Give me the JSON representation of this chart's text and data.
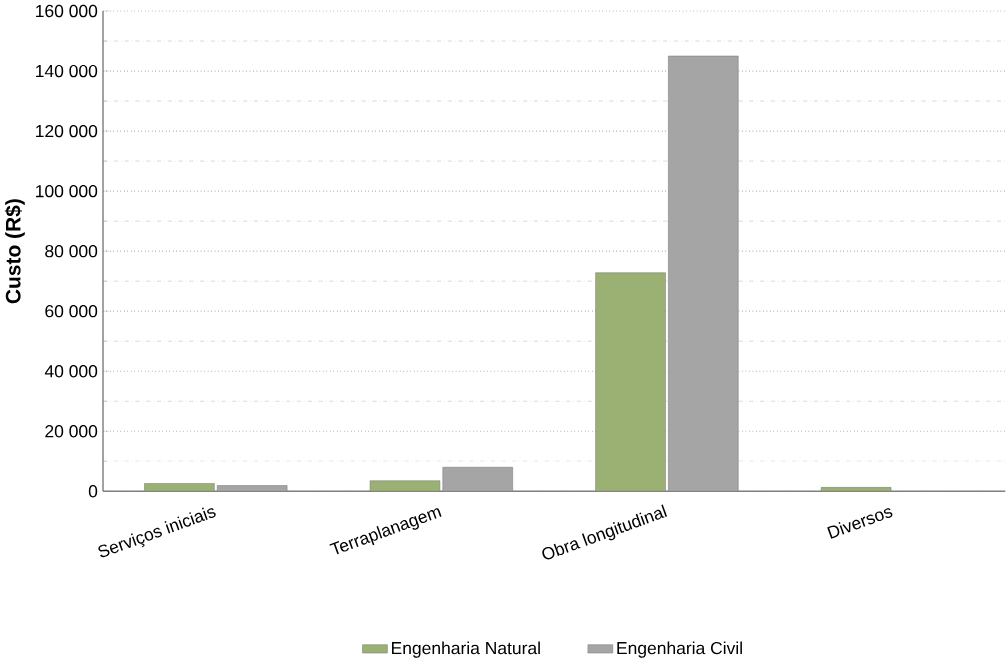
{
  "chart_data": {
    "type": "bar",
    "ylabel": "Custo (R$)",
    "categories": [
      "Serviços iniciais",
      "Terraplanagem",
      "Obra longitudinal",
      "Diversos"
    ],
    "series": [
      {
        "name": "Engenharia Natural",
        "color": "#9bb174",
        "values": [
          2600,
          3500,
          72800,
          1300
        ]
      },
      {
        "name": "Engenharia Civil",
        "color": "#a5a5a5",
        "values": [
          1900,
          8000,
          145000,
          null
        ]
      }
    ],
    "ylim": [
      0,
      160000
    ],
    "yticks": [
      {
        "value": 0,
        "label": "0"
      },
      {
        "value": 20000,
        "label": "20 000"
      },
      {
        "value": 40000,
        "label": "40 000"
      },
      {
        "value": 60000,
        "label": "60 000"
      },
      {
        "value": 80000,
        "label": "80 000"
      },
      {
        "value": 100000,
        "label": "100 000"
      },
      {
        "value": 120000,
        "label": "120 000"
      },
      {
        "value": 140000,
        "label": "140 000"
      },
      {
        "value": 160000,
        "label": "160 000"
      }
    ],
    "grid": "y",
    "legend": "bottom"
  }
}
